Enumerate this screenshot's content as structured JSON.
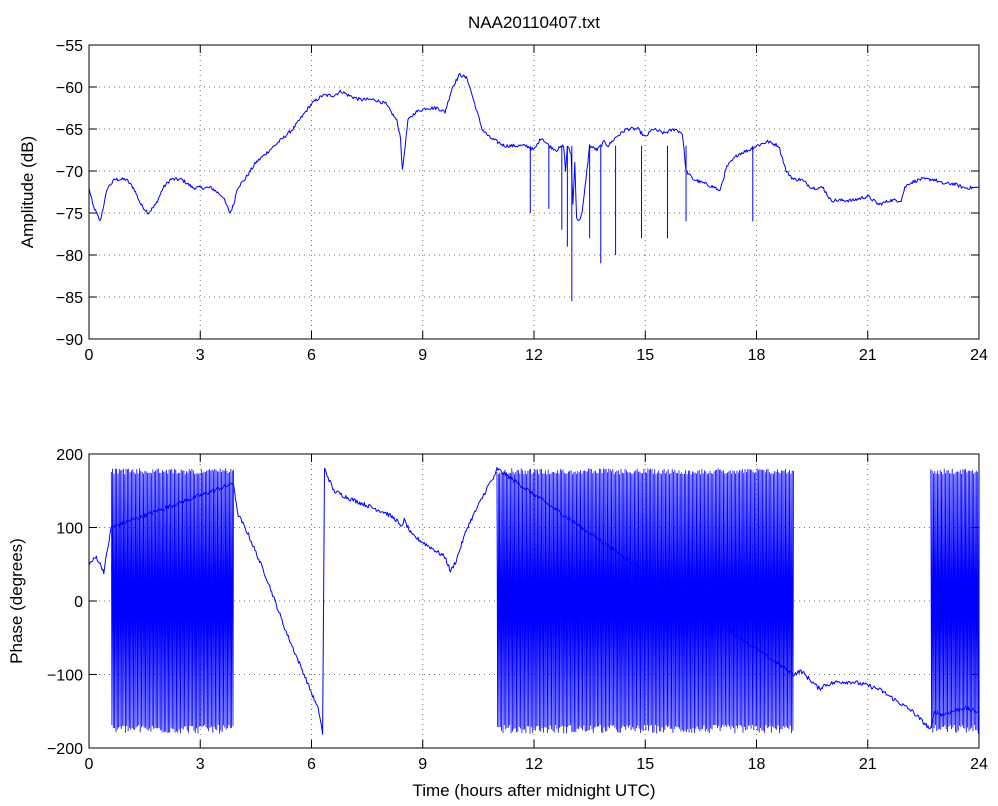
{
  "chart_data": [
    {
      "type": "line",
      "title": "NAA20110407.txt",
      "xlabel": "",
      "ylabel": "Amplitude (dB)",
      "xlim": [
        0,
        24
      ],
      "ylim": [
        -90,
        -55
      ],
      "xticks": [
        0,
        3,
        6,
        9,
        12,
        15,
        18,
        21,
        24
      ],
      "yticks": [
        -90,
        -85,
        -80,
        -75,
        -70,
        -65,
        -60,
        -55
      ],
      "grid": true,
      "color": "#0000ff",
      "series": [
        {
          "x": [
            0,
            0.1,
            0.3,
            0.5,
            0.7,
            1.0,
            1.2,
            1.4,
            1.6,
            1.8,
            2.0,
            2.2,
            2.5,
            2.8,
            3.0,
            3.3,
            3.6,
            3.8,
            3.9,
            4.0,
            4.2,
            4.5,
            5.0,
            5.5,
            6.0,
            6.3,
            6.6,
            6.8,
            7.0,
            7.3,
            7.7,
            8.0,
            8.3,
            8.4,
            8.45,
            8.5,
            8.6,
            8.8,
            9.1,
            9.4,
            9.6,
            9.8,
            10.0,
            10.2,
            10.4,
            10.6,
            10.8,
            11.0,
            11.2,
            11.5,
            11.8,
            12.0,
            12.2,
            12.4,
            12.6,
            12.8,
            12.85,
            12.9,
            13.0,
            13.05,
            13.1,
            13.15,
            13.2,
            13.3,
            13.5,
            13.7,
            13.8,
            13.9,
            14.0,
            14.2,
            14.5,
            14.8,
            15.0,
            15.1,
            15.2,
            15.5,
            15.8,
            16.0,
            16.1,
            16.3,
            16.6,
            16.9,
            17.0,
            17.1,
            17.2,
            17.5,
            17.8,
            18.0,
            18.3,
            18.6,
            18.8,
            19.0,
            19.2,
            19.5,
            19.8,
            20.0,
            20.3,
            20.6,
            21.0,
            21.3,
            21.6,
            21.9,
            22.0,
            22.1,
            22.4,
            22.8,
            23.0,
            23.3,
            23.6,
            24.0
          ],
          "y": [
            -72,
            -74,
            -76,
            -72,
            -71,
            -71,
            -72,
            -74,
            -75,
            -74,
            -72,
            -71,
            -71,
            -72,
            -72,
            -72,
            -73,
            -75,
            -74,
            -72,
            -71,
            -69,
            -67,
            -65,
            -62,
            -61,
            -61,
            -60.5,
            -61,
            -61.5,
            -61.5,
            -62,
            -64,
            -66,
            -70,
            -68,
            -64,
            -63,
            -62.5,
            -62.5,
            -63,
            -60,
            -58.5,
            -59,
            -62,
            -65,
            -66,
            -66.5,
            -67,
            -67,
            -67,
            -67.5,
            -66,
            -67,
            -67.5,
            -67,
            -70,
            -67,
            -68,
            -74,
            -69,
            -75.5,
            -76,
            -75,
            -67,
            -67.5,
            -67,
            -66.5,
            -67,
            -66,
            -65,
            -65,
            -66,
            -65.5,
            -65,
            -65.5,
            -65,
            -65.5,
            -70,
            -71,
            -71.5,
            -72,
            -72.5,
            -71,
            -69.5,
            -68,
            -67.5,
            -67,
            -66.5,
            -67,
            -70,
            -71,
            -71,
            -72,
            -72,
            -73.5,
            -73.5,
            -73.5,
            -73,
            -74,
            -73.5,
            -73.5,
            -72,
            -71.5,
            -71,
            -71,
            -71.5,
            -71.5,
            -72,
            -72
          ]
        }
      ]
    },
    {
      "type": "line",
      "title": "",
      "xlabel": "Time (hours after midnight UTC)",
      "ylabel": "Phase (degrees)",
      "xlim": [
        0,
        24
      ],
      "ylim": [
        -200,
        200
      ],
      "xticks": [
        0,
        3,
        6,
        9,
        12,
        15,
        18,
        21,
        24
      ],
      "yticks": [
        -200,
        -100,
        0,
        100,
        200
      ],
      "grid": true,
      "color": "#0000ff",
      "series": [
        {
          "x": [
            0,
            0.2,
            0.4,
            0.6,
            3.9,
            4.0,
            4.3,
            4.8,
            5.3,
            5.8,
            6.2,
            6.3,
            6.35,
            6.6,
            7.0,
            7.5,
            8.0,
            8.3,
            8.4,
            8.5,
            8.7,
            9.0,
            9.3,
            9.6,
            9.75,
            9.9,
            10.2,
            10.5,
            10.8,
            10.95,
            11.0,
            19.0,
            19.2,
            19.5,
            19.7,
            19.8,
            20.2,
            20.6,
            21.0,
            21.3,
            21.6,
            21.9,
            22.2,
            22.5,
            22.7,
            22.8,
            23.0,
            23.3,
            23.6,
            23.9,
            24.0
          ],
          "y": [
            50,
            60,
            40,
            100,
            160,
            120,
            90,
            30,
            -40,
            -100,
            -150,
            -180,
            180,
            150,
            140,
            130,
            120,
            110,
            100,
            110,
            90,
            80,
            70,
            60,
            40,
            55,
            100,
            130,
            160,
            170,
            180,
            -100,
            -95,
            -110,
            -120,
            -115,
            -110,
            -110,
            -115,
            -120,
            -130,
            -140,
            -150,
            -165,
            -175,
            -150,
            -155,
            -150,
            -145,
            -150,
            -150
          ],
          "oscillations": [
            {
              "x_range": [
                0.6,
                3.9
              ],
              "min": -180,
              "max": 180
            },
            {
              "x_range": [
                11.0,
                19.0
              ],
              "min": -180,
              "max": 180
            },
            {
              "x_range": [
                22.7,
                24.0
              ],
              "min": -180,
              "max": 180
            }
          ]
        }
      ]
    }
  ]
}
